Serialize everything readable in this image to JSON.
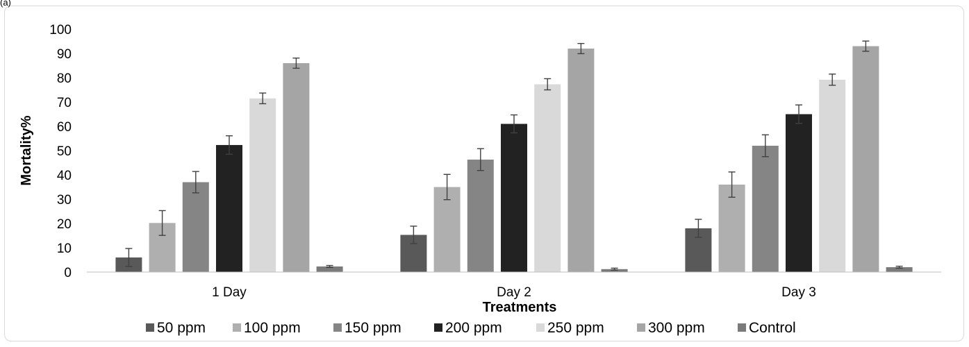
{
  "panel_label": "(a)",
  "chart_data": {
    "type": "bar",
    "title": "",
    "xlabel": "Treatments",
    "ylabel": "Mortality%",
    "ylim": [
      0,
      100
    ],
    "yticks": [
      0,
      10,
      20,
      30,
      40,
      50,
      60,
      70,
      80,
      90,
      100
    ],
    "grid": false,
    "legend_position": "bottom",
    "categories": [
      "1 Day",
      "Day 2",
      "Day 3"
    ],
    "series": [
      {
        "name": "50 ppm",
        "color": "#595959",
        "values": [
          6,
          15.3,
          18
        ],
        "errors": [
          3.7,
          3.6,
          3.7
        ]
      },
      {
        "name": "100 ppm",
        "color": "#afafaf",
        "values": [
          20.2,
          35,
          36
        ],
        "errors": [
          5.1,
          5.2,
          5.2
        ]
      },
      {
        "name": "150 ppm",
        "color": "#858585",
        "values": [
          37,
          46.3,
          52
        ],
        "errors": [
          4.4,
          4.5,
          4.5
        ]
      },
      {
        "name": "200 ppm",
        "color": "#222222",
        "values": [
          52.3,
          61,
          65
        ],
        "errors": [
          3.8,
          3.7,
          3.8
        ]
      },
      {
        "name": "250 ppm",
        "color": "#d9d9d9",
        "values": [
          71.5,
          77.3,
          79.2
        ],
        "errors": [
          2.2,
          2.3,
          2.3
        ]
      },
      {
        "name": "300 ppm",
        "color": "#a5a5a5",
        "values": [
          86,
          92,
          93
        ],
        "errors": [
          2.1,
          2.1,
          2.1
        ]
      },
      {
        "name": "Control",
        "color": "#7a7a7a",
        "values": [
          2.3,
          1.2,
          2.0
        ],
        "errors": [
          0.4,
          0.4,
          0.4
        ]
      }
    ]
  }
}
